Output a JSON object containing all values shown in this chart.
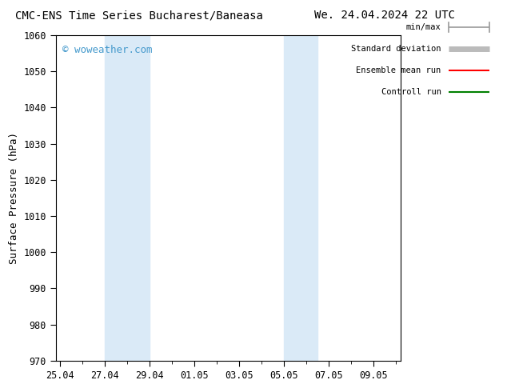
{
  "title_left": "CMC-ENS Time Series Bucharest/Baneasa",
  "title_right": "We. 24.04.2024 22 UTC",
  "ylabel": "Surface Pressure (hPa)",
  "ylim": [
    970,
    1060
  ],
  "yticks": [
    970,
    980,
    990,
    1000,
    1010,
    1020,
    1030,
    1040,
    1050,
    1060
  ],
  "xtick_labels": [
    "25.04",
    "27.04",
    "29.04",
    "01.05",
    "03.05",
    "05.05",
    "07.05",
    "09.05"
  ],
  "xtick_positions": [
    0,
    2,
    4,
    6,
    8,
    10,
    12,
    14
  ],
  "xlim": [
    -0.2,
    15.2
  ],
  "shaded_bands": [
    {
      "start": 2,
      "end": 4,
      "color": "#daeaf7"
    },
    {
      "start": 10,
      "end": 11.5,
      "color": "#daeaf7"
    }
  ],
  "watermark": "© woweather.com",
  "watermark_color": "#4499cc",
  "legend_entries": [
    {
      "label": "min/max",
      "color": "#999999",
      "lw": 1.2,
      "style": "solid"
    },
    {
      "label": "Standard deviation",
      "color": "#bbbbbb",
      "lw": 5,
      "style": "solid"
    },
    {
      "label": "Ensemble mean run",
      "color": "#ff0000",
      "lw": 1.5,
      "style": "solid"
    },
    {
      "label": "Controll run",
      "color": "#008000",
      "lw": 1.5,
      "style": "solid"
    }
  ],
  "bg_color": "#ffffff",
  "plot_bg_color": "#ffffff",
  "font_color": "#000000",
  "title_fontsize": 10,
  "axis_label_fontsize": 9,
  "tick_fontsize": 8.5,
  "legend_fontsize": 7.5
}
